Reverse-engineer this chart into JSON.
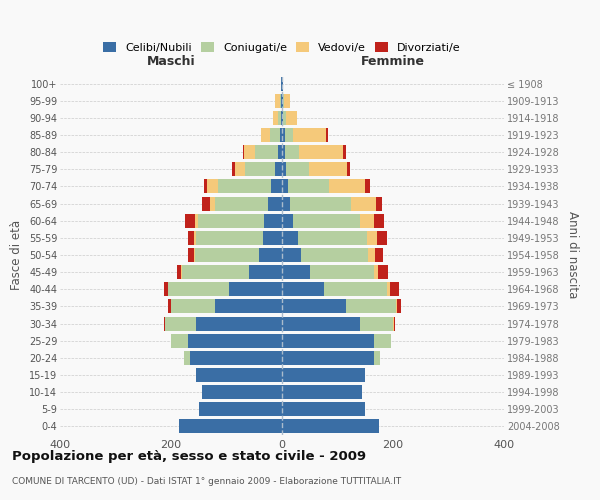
{
  "age_groups": [
    "0-4",
    "5-9",
    "10-14",
    "15-19",
    "20-24",
    "25-29",
    "30-34",
    "35-39",
    "40-44",
    "45-49",
    "50-54",
    "55-59",
    "60-64",
    "65-69",
    "70-74",
    "75-79",
    "80-84",
    "85-89",
    "90-94",
    "95-99",
    "100+"
  ],
  "birth_years": [
    "2004-2008",
    "1999-2003",
    "1994-1998",
    "1989-1993",
    "1984-1988",
    "1979-1983",
    "1974-1978",
    "1969-1973",
    "1964-1968",
    "1959-1963",
    "1954-1958",
    "1949-1953",
    "1944-1948",
    "1939-1943",
    "1934-1938",
    "1929-1933",
    "1924-1928",
    "1919-1923",
    "1914-1918",
    "1909-1913",
    "≤ 1908"
  ],
  "colors": {
    "celibi": "#3a6ea5",
    "coniugati": "#b5cfa0",
    "vedovi": "#f5c97a",
    "divorziati": "#c0221b"
  },
  "males": {
    "celibi": [
      185,
      150,
      145,
      155,
      165,
      170,
      155,
      120,
      95,
      60,
      42,
      35,
      32,
      25,
      20,
      12,
      8,
      4,
      2,
      2,
      1
    ],
    "coniugati": [
      0,
      0,
      0,
      0,
      12,
      30,
      55,
      80,
      110,
      120,
      115,
      120,
      120,
      95,
      95,
      55,
      40,
      18,
      5,
      2,
      0
    ],
    "vedovi": [
      0,
      0,
      0,
      0,
      0,
      0,
      0,
      0,
      0,
      2,
      2,
      3,
      5,
      10,
      20,
      18,
      20,
      15,
      10,
      8,
      0
    ],
    "divorziati": [
      0,
      0,
      0,
      0,
      0,
      0,
      2,
      5,
      8,
      8,
      10,
      12,
      18,
      15,
      5,
      5,
      2,
      0,
      0,
      0,
      0
    ]
  },
  "females": {
    "nubili": [
      175,
      150,
      145,
      150,
      165,
      165,
      140,
      115,
      75,
      50,
      35,
      28,
      20,
      15,
      10,
      8,
      5,
      5,
      2,
      2,
      1
    ],
    "coniugate": [
      0,
      0,
      0,
      0,
      12,
      32,
      60,
      90,
      115,
      115,
      120,
      125,
      120,
      110,
      75,
      40,
      25,
      15,
      5,
      2,
      0
    ],
    "vedove": [
      0,
      0,
      0,
      0,
      0,
      0,
      2,
      2,
      5,
      8,
      12,
      18,
      25,
      45,
      65,
      70,
      80,
      60,
      20,
      10,
      0
    ],
    "divorziate": [
      0,
      0,
      0,
      0,
      0,
      0,
      2,
      8,
      15,
      18,
      15,
      18,
      18,
      10,
      8,
      5,
      5,
      2,
      0,
      0,
      0
    ]
  },
  "title": "Popolazione per età, sesso e stato civile - 2009",
  "subtitle": "COMUNE DI TARCENTO (UD) - Dati ISTAT 1° gennaio 2009 - Elaborazione TUTTITALIA.IT",
  "xlabel_left": "Maschi",
  "xlabel_right": "Femmine",
  "ylabel_left": "Fasce di età",
  "ylabel_right": "Anni di nascita",
  "legend_labels": [
    "Celibi/Nubili",
    "Coniugati/e",
    "Vedovi/e",
    "Divorziati/e"
  ],
  "xlim": 400,
  "background_color": "#f9f9f9",
  "grid_color": "#cccccc"
}
